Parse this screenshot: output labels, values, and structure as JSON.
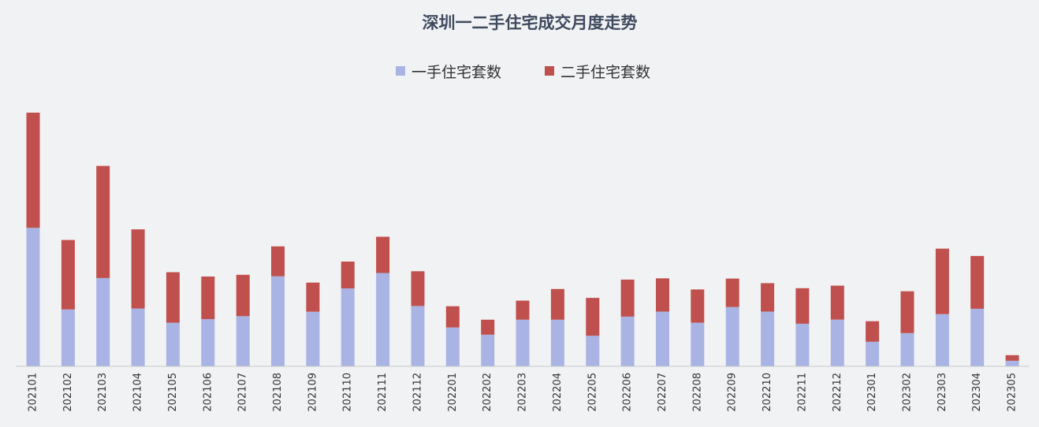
{
  "chart_data": {
    "type": "bar",
    "stacked": true,
    "title": "深圳一二手住宅成交月度走势",
    "legend_position": "top-center",
    "grid": false,
    "categories": [
      "202101",
      "202102",
      "202103",
      "202104",
      "202105",
      "202106",
      "202107",
      "202108",
      "202109",
      "202110",
      "202111",
      "202112",
      "202201",
      "202202",
      "202203",
      "202204",
      "202205",
      "202206",
      "202207",
      "202208",
      "202209",
      "202210",
      "202211",
      "202212",
      "202301",
      "202302",
      "202303",
      "202304",
      "202305"
    ],
    "ylim": [
      0,
      100
    ],
    "series": [
      {
        "name": "一手住宅套数",
        "color": "#a9b4e4",
        "values": [
          54.6,
          22.4,
          34.8,
          22.8,
          17.2,
          18.6,
          19.8,
          35.5,
          21.5,
          30.7,
          36.8,
          23.8,
          15.3,
          12.5,
          18.4,
          18.4,
          12.1,
          19.6,
          21.6,
          17.2,
          23.4,
          21.6,
          16.8,
          18.4,
          9.7,
          13.1,
          20.6,
          22.7,
          2.2
        ]
      },
      {
        "name": "二手住宅套数",
        "color": "#c0504d",
        "values": [
          45.4,
          27.4,
          44.2,
          31.2,
          19.9,
          16.8,
          16.3,
          11.8,
          11.5,
          10.6,
          14.3,
          13.7,
          8.4,
          5.9,
          7.5,
          12.1,
          14.9,
          14.6,
          13.1,
          13.1,
          11.2,
          11.2,
          14.0,
          13.4,
          8.1,
          16.5,
          25.8,
          20.8,
          2.2
        ]
      }
    ]
  }
}
